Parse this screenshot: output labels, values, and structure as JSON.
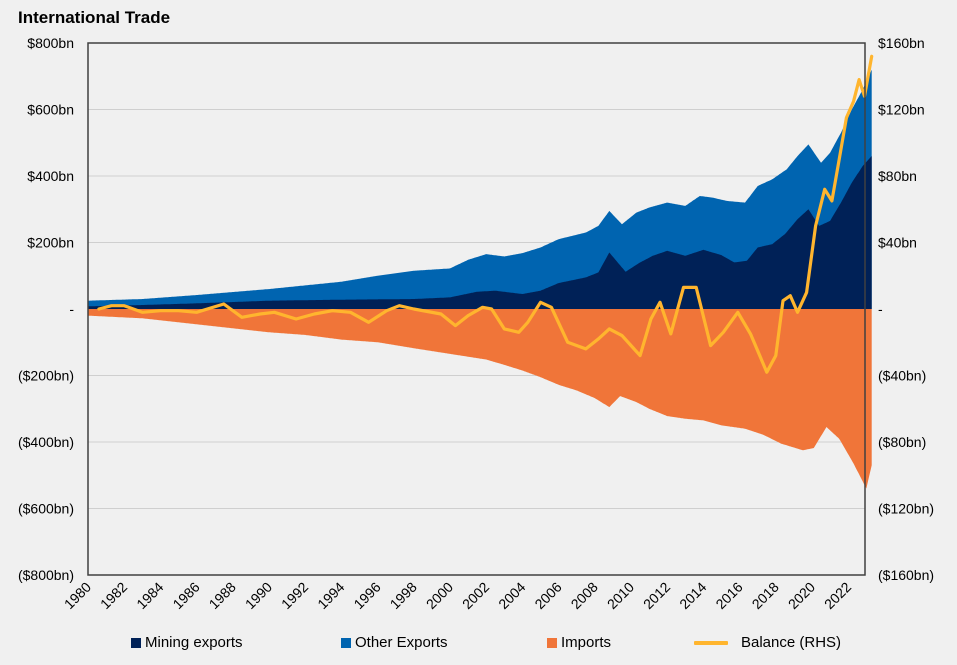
{
  "chart_data": {
    "type": "area",
    "title": "International Trade",
    "xlabel": "",
    "ylabel": "",
    "y2label": "",
    "xlim": [
      1980,
      2023.3
    ],
    "ylim": [
      -800,
      800
    ],
    "y2lim": [
      -160,
      160
    ],
    "x_ticks": [
      "1980",
      "1982",
      "1984",
      "1986",
      "1988",
      "1990",
      "1992",
      "1994",
      "1996",
      "1998",
      "2000",
      "2002",
      "2004",
      "2006",
      "2008",
      "2010",
      "2012",
      "2014",
      "2016",
      "2018",
      "2020",
      "2022"
    ],
    "y_ticks": [
      {
        "value": 800,
        "label": "$800bn"
      },
      {
        "value": 600,
        "label": "$600bn"
      },
      {
        "value": 400,
        "label": "$400bn"
      },
      {
        "value": 200,
        "label": "$200bn"
      },
      {
        "value": 0,
        "label": "-"
      },
      {
        "value": -200,
        "label": "($200bn)"
      },
      {
        "value": -400,
        "label": "($400bn)"
      },
      {
        "value": -600,
        "label": "($600bn)"
      },
      {
        "value": -800,
        "label": "($800bn)"
      }
    ],
    "y2_ticks": [
      {
        "value": 160,
        "label": "$160bn"
      },
      {
        "value": 120,
        "label": "$120bn"
      },
      {
        "value": 80,
        "label": "$80bn"
      },
      {
        "value": 40,
        "label": "$40bn"
      },
      {
        "value": 0,
        "label": "-"
      },
      {
        "value": -40,
        "label": "($40bn)"
      },
      {
        "value": -80,
        "label": "($80bn)"
      },
      {
        "value": -120,
        "label": "($120bn)"
      },
      {
        "value": -160,
        "label": "($160bn)"
      }
    ],
    "grid": true,
    "legend_position": "bottom",
    "series": [
      {
        "name": "Mining exports",
        "kind": "stacked-area",
        "axis": "left",
        "color": "#002157",
        "points": [
          [
            1980,
            8
          ],
          [
            1983,
            12
          ],
          [
            1986,
            17
          ],
          [
            1990,
            25
          ],
          [
            1994,
            28
          ],
          [
            1998,
            30
          ],
          [
            2000,
            35
          ],
          [
            2001.5,
            52
          ],
          [
            2002.5,
            55
          ],
          [
            2004,
            45
          ],
          [
            2005,
            55
          ],
          [
            2006,
            78
          ],
          [
            2007.5,
            95
          ],
          [
            2008.2,
            110
          ],
          [
            2008.8,
            170
          ],
          [
            2009.7,
            112
          ],
          [
            2010.5,
            140
          ],
          [
            2011.2,
            160
          ],
          [
            2012,
            175
          ],
          [
            2013,
            160
          ],
          [
            2014,
            178
          ],
          [
            2015,
            162
          ],
          [
            2015.7,
            140
          ],
          [
            2016.4,
            145
          ],
          [
            2017,
            185
          ],
          [
            2017.8,
            195
          ],
          [
            2018.5,
            225
          ],
          [
            2019.2,
            270
          ],
          [
            2019.8,
            300
          ],
          [
            2020.4,
            250
          ],
          [
            2021,
            265
          ],
          [
            2021.6,
            320
          ],
          [
            2022.2,
            380
          ],
          [
            2022.8,
            430
          ],
          [
            2023.3,
            460
          ]
        ]
      },
      {
        "name": "Other Exports",
        "kind": "stacked-area",
        "axis": "left",
        "color": "#0064B0",
        "total_points": [
          [
            1980,
            25
          ],
          [
            1983,
            30
          ],
          [
            1986,
            42
          ],
          [
            1990,
            60
          ],
          [
            1994,
            82
          ],
          [
            1996,
            100
          ],
          [
            1998,
            115
          ],
          [
            2000,
            122
          ],
          [
            2001,
            148
          ],
          [
            2002,
            165
          ],
          [
            2003,
            158
          ],
          [
            2004,
            168
          ],
          [
            2005,
            185
          ],
          [
            2006,
            210
          ],
          [
            2007.5,
            230
          ],
          [
            2008.2,
            250
          ],
          [
            2008.8,
            295
          ],
          [
            2009.5,
            255
          ],
          [
            2010.3,
            290
          ],
          [
            2011,
            305
          ],
          [
            2012,
            320
          ],
          [
            2013,
            310
          ],
          [
            2013.8,
            340
          ],
          [
            2014.5,
            335
          ],
          [
            2015.3,
            325
          ],
          [
            2016.3,
            320
          ],
          [
            2017,
            370
          ],
          [
            2017.8,
            390
          ],
          [
            2018.6,
            420
          ],
          [
            2019.2,
            460
          ],
          [
            2019.8,
            495
          ],
          [
            2020.5,
            440
          ],
          [
            2021,
            470
          ],
          [
            2021.6,
            530
          ],
          [
            2022.2,
            600
          ],
          [
            2022.8,
            660
          ],
          [
            2023.3,
            720
          ]
        ]
      },
      {
        "name": "Imports",
        "kind": "area",
        "axis": "left",
        "color": "#F07539",
        "points": [
          [
            1980,
            -20
          ],
          [
            1983,
            -28
          ],
          [
            1985,
            -40
          ],
          [
            1988,
            -58
          ],
          [
            1990,
            -70
          ],
          [
            1992,
            -78
          ],
          [
            1994,
            -92
          ],
          [
            1996,
            -100
          ],
          [
            1998,
            -118
          ],
          [
            2000,
            -135
          ],
          [
            2002,
            -152
          ],
          [
            2003,
            -168
          ],
          [
            2004,
            -185
          ],
          [
            2005,
            -205
          ],
          [
            2006,
            -228
          ],
          [
            2007,
            -245
          ],
          [
            2008,
            -268
          ],
          [
            2008.8,
            -295
          ],
          [
            2009.4,
            -262
          ],
          [
            2010.3,
            -280
          ],
          [
            2011,
            -300
          ],
          [
            2012,
            -322
          ],
          [
            2013,
            -330
          ],
          [
            2014,
            -335
          ],
          [
            2015,
            -350
          ],
          [
            2016.3,
            -360
          ],
          [
            2017.3,
            -378
          ],
          [
            2018.3,
            -405
          ],
          [
            2019.5,
            -425
          ],
          [
            2020.1,
            -418
          ],
          [
            2020.8,
            -355
          ],
          [
            2021.5,
            -390
          ],
          [
            2022.3,
            -465
          ],
          [
            2023.0,
            -540
          ],
          [
            2023.3,
            -470
          ]
        ]
      },
      {
        "name": "Balance (RHS)",
        "kind": "line",
        "axis": "right",
        "color": "#FFB52E",
        "points": [
          [
            1980.6,
            0
          ],
          [
            1981.3,
            2
          ],
          [
            1982,
            2
          ],
          [
            1983,
            -2
          ],
          [
            1984,
            -1
          ],
          [
            1985,
            -1
          ],
          [
            1986,
            -2
          ],
          [
            1987.5,
            3
          ],
          [
            1988.5,
            -5
          ],
          [
            1989.5,
            -3
          ],
          [
            1990.3,
            -2
          ],
          [
            1991.5,
            -6
          ],
          [
            1992.5,
            -3
          ],
          [
            1993.5,
            -1
          ],
          [
            1994.5,
            -2
          ],
          [
            1995.5,
            -8
          ],
          [
            1996.5,
            -1
          ],
          [
            1997.2,
            2
          ],
          [
            1998,
            0
          ],
          [
            1999.5,
            -3
          ],
          [
            2000.3,
            -10
          ],
          [
            2001,
            -4
          ],
          [
            2001.8,
            1
          ],
          [
            2002.3,
            0
          ],
          [
            2003,
            -12
          ],
          [
            2003.8,
            -14
          ],
          [
            2004.3,
            -8
          ],
          [
            2005,
            4
          ],
          [
            2005.6,
            1
          ],
          [
            2006.5,
            -20
          ],
          [
            2007.5,
            -24
          ],
          [
            2008.2,
            -18
          ],
          [
            2008.8,
            -12
          ],
          [
            2009.5,
            -16
          ],
          [
            2010.5,
            -28
          ],
          [
            2011.1,
            -6
          ],
          [
            2011.6,
            4
          ],
          [
            2012.2,
            -15
          ],
          [
            2012.9,
            13
          ],
          [
            2013.6,
            13
          ],
          [
            2014.4,
            -22
          ],
          [
            2015.1,
            -14
          ],
          [
            2015.9,
            -2
          ],
          [
            2016.6,
            -15
          ],
          [
            2017.5,
            -38
          ],
          [
            2018,
            -28
          ],
          [
            2018.4,
            5
          ],
          [
            2018.8,
            8
          ],
          [
            2019.2,
            -2
          ],
          [
            2019.7,
            10
          ],
          [
            2020.2,
            50
          ],
          [
            2020.7,
            72
          ],
          [
            2021.1,
            65
          ],
          [
            2021.5,
            90
          ],
          [
            2021.9,
            115
          ],
          [
            2022.3,
            125
          ],
          [
            2022.6,
            138
          ],
          [
            2022.9,
            128
          ],
          [
            2023.3,
            152
          ]
        ]
      }
    ]
  },
  "legend": [
    {
      "label": "Mining exports",
      "color": "#002157",
      "type": "box"
    },
    {
      "label": "Other Exports",
      "color": "#0064B0",
      "type": "box"
    },
    {
      "label": "Imports",
      "color": "#F07539",
      "type": "box"
    },
    {
      "label": "Balance (RHS)",
      "color": "#FFB52E",
      "type": "line"
    }
  ]
}
